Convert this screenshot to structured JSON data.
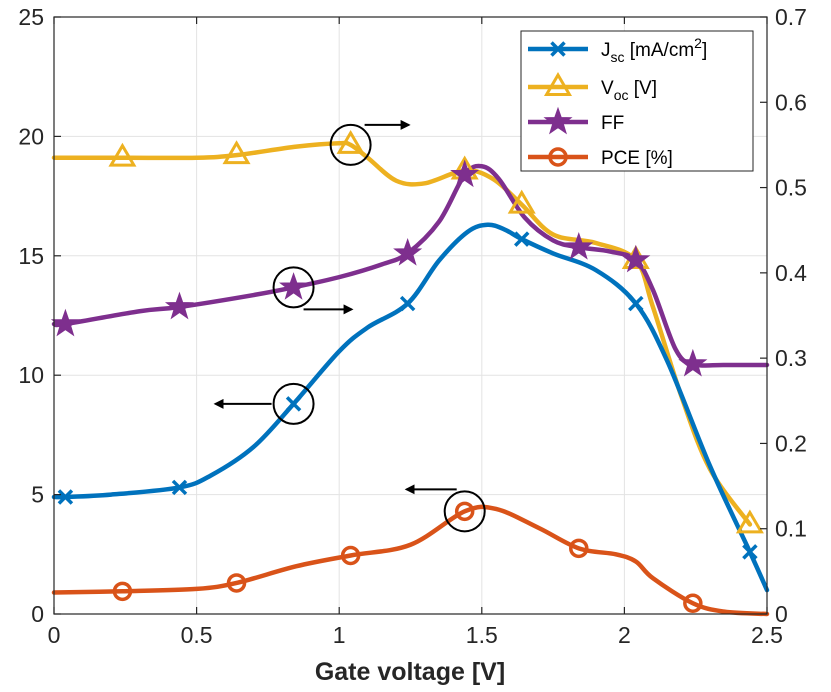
{
  "chart_data": {
    "type": "line",
    "title": "",
    "xlabel": "Gate voltage [V]",
    "ylabel": "",
    "y2label": "",
    "xlim": [
      0,
      2.5
    ],
    "ylim": [
      0,
      25
    ],
    "y2lim": [
      0,
      0.7
    ],
    "xticks": [
      "0",
      "0.5",
      "1",
      "1.5",
      "2",
      "2.5"
    ],
    "yticks": [
      "0",
      "5",
      "10",
      "15",
      "20",
      "25"
    ],
    "y2ticks": [
      "0",
      "0.1",
      "0.2",
      "0.3",
      "0.4",
      "0.5",
      "0.6",
      "0.7"
    ],
    "grid": true,
    "legend_position": "top-right",
    "series": [
      {
        "name": "J_sc [mA/cm^2]",
        "legend_main": "J",
        "legend_sub": "sc",
        "legend_rest": " [mA/cm",
        "legend_sup": "2",
        "legend_end": "]",
        "axis": "left",
        "color": "#0072BD",
        "marker": "x",
        "x": [
          0.04,
          0.44,
          0.84,
          1.24,
          1.64,
          2.04,
          2.44
        ],
        "y": [
          4.9,
          5.3,
          8.8,
          13.0,
          15.7,
          13.0,
          2.6
        ],
        "curve_x": [
          0.0,
          0.04,
          0.2,
          0.44,
          0.55,
          0.7,
          0.84,
          1.0,
          1.1,
          1.24,
          1.35,
          1.45,
          1.52,
          1.58,
          1.64,
          1.75,
          1.9,
          2.04,
          2.15,
          2.3,
          2.44,
          2.5
        ],
        "curve_y": [
          4.9,
          4.9,
          5.0,
          5.3,
          5.8,
          7.0,
          8.8,
          11.0,
          12.0,
          13.0,
          14.8,
          16.0,
          16.3,
          16.1,
          15.7,
          15.1,
          14.4,
          13.0,
          10.6,
          6.2,
          2.6,
          1.0
        ]
      },
      {
        "name": "V_oc [V]",
        "legend_main": "V",
        "legend_sub": "oc",
        "legend_rest": " [V]",
        "legend_sup": "",
        "legend_end": "",
        "axis": "right",
        "color": "#EDB120",
        "marker": "triangle",
        "x": [
          0.24,
          0.64,
          1.04,
          1.44,
          1.64,
          2.04,
          2.44
        ],
        "y": [
          0.535,
          0.538,
          0.55,
          0.52,
          0.48,
          0.415,
          0.105
        ],
        "curve_x": [
          0.0,
          0.24,
          0.5,
          0.64,
          0.85,
          1.0,
          1.04,
          1.1,
          1.2,
          1.3,
          1.44,
          1.54,
          1.64,
          1.75,
          1.9,
          2.04,
          2.1,
          2.2,
          2.3,
          2.44
        ],
        "curve_y": [
          0.535,
          0.535,
          0.535,
          0.538,
          0.548,
          0.552,
          0.55,
          0.535,
          0.508,
          0.505,
          0.52,
          0.51,
          0.48,
          0.445,
          0.435,
          0.415,
          0.36,
          0.255,
          0.17,
          0.105
        ]
      },
      {
        "name": "FF",
        "legend_main": "FF",
        "legend_sub": "",
        "legend_rest": "",
        "legend_sup": "",
        "legend_end": "",
        "axis": "right",
        "color": "#7E2F8E",
        "marker": "star",
        "x": [
          0.04,
          0.44,
          0.84,
          1.24,
          1.44,
          1.84,
          2.04,
          2.24
        ],
        "y": [
          0.34,
          0.36,
          0.383,
          0.423,
          0.515,
          0.43,
          0.415,
          0.293
        ],
        "curve_x": [
          0.0,
          0.04,
          0.3,
          0.44,
          0.7,
          0.84,
          1.0,
          1.15,
          1.24,
          1.35,
          1.44,
          1.5,
          1.56,
          1.65,
          1.75,
          1.84,
          1.95,
          2.04,
          2.1,
          2.18,
          2.24,
          2.35,
          2.5
        ],
        "curve_y": [
          0.34,
          0.34,
          0.355,
          0.36,
          0.374,
          0.383,
          0.395,
          0.41,
          0.423,
          0.46,
          0.515,
          0.525,
          0.51,
          0.465,
          0.438,
          0.43,
          0.425,
          0.415,
          0.38,
          0.31,
          0.293,
          0.292,
          0.292
        ]
      },
      {
        "name": "PCE [%]",
        "legend_main": "PCE [%]",
        "legend_sub": "",
        "legend_rest": "",
        "legend_sup": "",
        "legend_end": "",
        "axis": "left",
        "color": "#D95319",
        "marker": "circle",
        "x": [
          0.24,
          0.64,
          1.04,
          1.44,
          1.84,
          2.24
        ],
        "y": [
          0.95,
          1.3,
          2.45,
          4.3,
          2.75,
          0.45
        ],
        "curve_x": [
          0.0,
          0.24,
          0.5,
          0.64,
          0.85,
          1.04,
          1.25,
          1.44,
          1.55,
          1.7,
          1.84,
          1.97,
          2.04,
          2.1,
          2.24,
          2.35,
          2.5
        ],
        "curve_y": [
          0.9,
          0.95,
          1.05,
          1.3,
          2.0,
          2.45,
          2.9,
          4.3,
          4.4,
          3.6,
          2.75,
          2.5,
          2.2,
          1.5,
          0.45,
          0.1,
          0.0
        ]
      }
    ],
    "annotations": [
      {
        "label": "circle-arrow-voc-right",
        "target": "V_oc [V]",
        "x": 1.04,
        "y_right": 0.55,
        "direction": "right"
      },
      {
        "label": "circle-arrow-ff-right",
        "target": "FF",
        "x": 0.84,
        "y_right": 0.383,
        "direction": "right"
      },
      {
        "label": "circle-arrow-jsc-left",
        "target": "J_sc [mA/cm^2]",
        "x": 0.84,
        "y": 8.8,
        "direction": "left"
      },
      {
        "label": "circle-arrow-pce-left",
        "target": "PCE [%]",
        "x": 1.44,
        "y": 4.3,
        "direction": "left"
      }
    ]
  }
}
